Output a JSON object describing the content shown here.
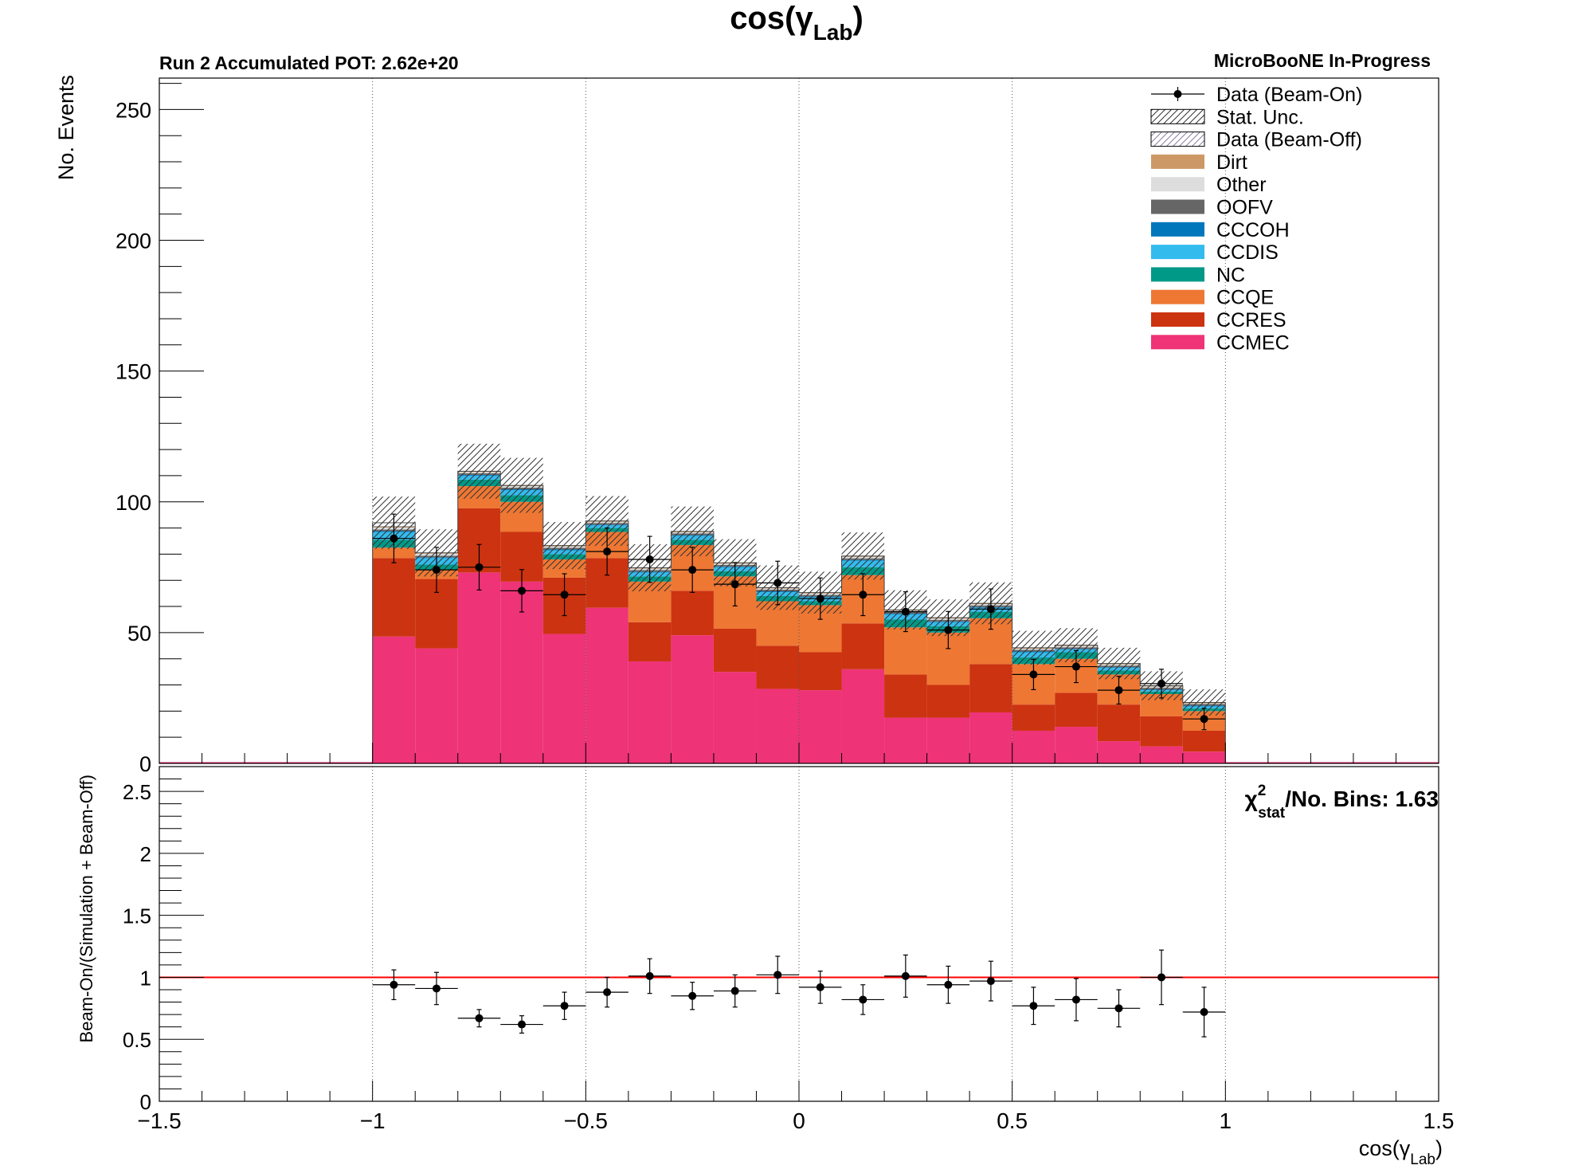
{
  "chart_data": {
    "type": "bar",
    "title": "cos(γ",
    "title_sub": "Lab",
    "title_close": ")",
    "subtitle_left": "Run 2 Accumulated POT: 2.62e+20",
    "subtitle_right": "MicroBooNE In-Progress",
    "xlabel": "cos(γ",
    "xlabel_sub": "Lab",
    "xlabel_close": ")",
    "ylabel": "No. Events",
    "ratio_ylabel": "Beam-On/(Simulation + Beam-Off)",
    "xlim": [
      -1.5,
      1.5
    ],
    "ylim": [
      0,
      262
    ],
    "ratio_ylim": [
      0,
      2.7
    ],
    "x_ticks": [
      "−1.5",
      "−1",
      "−0.5",
      "0",
      "0.5",
      "1",
      "1.5"
    ],
    "x_tick_values": [
      -1.5,
      -1,
      -0.5,
      0,
      0.5,
      1,
      1.5
    ],
    "y_ticks": [
      "0",
      "50",
      "100",
      "150",
      "200",
      "250"
    ],
    "y_tick_values": [
      0,
      50,
      100,
      150,
      200,
      250
    ],
    "ratio_ticks": [
      "0",
      "0.5",
      "1",
      "1.5",
      "2",
      "2.5"
    ],
    "ratio_tick_values": [
      0,
      0.5,
      1,
      1.5,
      2,
      2.5
    ],
    "bin_edges": [
      -1.0,
      -0.9,
      -0.8,
      -0.7,
      -0.6,
      -0.5,
      -0.4,
      -0.3,
      -0.2,
      -0.1,
      0.0,
      0.1,
      0.2,
      0.3,
      0.4,
      0.5,
      0.6,
      0.7,
      0.8,
      0.9,
      1.0
    ],
    "series": [
      {
        "name": "CCMEC",
        "color": "#ee3377",
        "values": [
          48.5,
          44,
          73,
          69.5,
          49.5,
          59.5,
          39,
          49,
          35,
          28.5,
          28,
          36,
          17.5,
          17.5,
          19.5,
          12.5,
          14,
          8.5,
          6.5,
          4.5
        ]
      },
      {
        "name": "CCRES",
        "color": "#cc3311",
        "values": [
          30,
          26.5,
          24.5,
          19,
          21.5,
          19,
          15,
          17,
          16.5,
          16.5,
          14.5,
          17.5,
          16.5,
          12.5,
          18.5,
          10,
          13,
          14,
          11.5,
          8
        ]
      },
      {
        "name": "CCQE",
        "color": "#ee7733",
        "values": [
          4,
          3.5,
          8.5,
          11.5,
          7,
          10,
          15.5,
          17.5,
          20,
          17,
          18,
          18.5,
          18,
          20,
          17.5,
          15.5,
          13,
          11.5,
          8.5,
          7.5
        ]
      },
      {
        "name": "NC",
        "color": "#009988",
        "values": [
          3,
          2,
          2.5,
          2.5,
          2,
          1.5,
          2,
          2,
          2,
          2,
          1.5,
          3,
          3,
          2.5,
          2.5,
          2.5,
          2.5,
          1.5,
          1,
          1
        ]
      },
      {
        "name": "CCDIS",
        "color": "#33bbee",
        "values": [
          3,
          2.5,
          1.5,
          2,
          1.5,
          1,
          1.5,
          1.5,
          1.5,
          1.5,
          1.5,
          2.5,
          2,
          1.5,
          1.5,
          2,
          1,
          1,
          0.5,
          0.8
        ]
      },
      {
        "name": "CCCOH",
        "color": "#0077bb",
        "values": [
          0.3,
          0.3,
          0.3,
          0.3,
          0.3,
          0.3,
          0.3,
          0.3,
          0.3,
          0.3,
          0.3,
          0.3,
          0.3,
          0.3,
          0.3,
          0.3,
          0.3,
          0.3,
          0.3,
          0.3
        ]
      },
      {
        "name": "OOFV",
        "color": "#666666",
        "values": [
          0.6,
          0.6,
          0.6,
          0.6,
          0.6,
          0.6,
          0.6,
          0.6,
          0.6,
          0.6,
          0.6,
          0.6,
          0.6,
          0.6,
          0.6,
          0.6,
          0.6,
          0.6,
          0.6,
          0.6
        ]
      },
      {
        "name": "Other",
        "color": "#dddddd",
        "values": [
          0.8,
          0.8,
          0.5,
          0.6,
          0.6,
          0.5,
          0.6,
          0.5,
          0.5,
          0.5,
          0.6,
          0.6,
          0.5,
          0.5,
          0.5,
          0.5,
          0.5,
          0.5,
          0.5,
          0.3
        ]
      },
      {
        "name": "Dirt",
        "color": "#cc9966",
        "values": [
          0.3,
          0.3,
          0.3,
          0.3,
          0.3,
          0.3,
          0.3,
          0.3,
          0.3,
          0.3,
          0.3,
          0.3,
          0.3,
          0.3,
          0.3,
          0.3,
          0.3,
          0.3,
          0.3,
          0.3
        ]
      },
      {
        "name": "Data (Beam-Off)",
        "color": "#ffffff",
        "values": [
          1.5,
          0,
          0,
          0,
          0,
          0,
          0,
          0,
          0,
          0,
          0,
          0,
          0,
          0,
          0,
          0,
          0,
          0,
          0,
          0
        ]
      }
    ],
    "stat_unc": [
      10,
      9,
      10.5,
      10.5,
      9,
      9.5,
      9,
      9.5,
      9,
      8.5,
      8,
      9,
      7.5,
      7,
      8,
      6.5,
      6.5,
      6,
      5.5,
      5
    ],
    "data": [
      86,
      74,
      75,
      66,
      64.5,
      81,
      78,
      74,
      68.5,
      69,
      63,
      64.5,
      58,
      51,
      59,
      34,
      37,
      28,
      30.5,
      17
    ],
    "data_err": [
      9.3,
      8.6,
      8.7,
      8.1,
      8.0,
      9.0,
      8.8,
      8.6,
      8.3,
      8.3,
      7.9,
      8.0,
      7.6,
      7.1,
      7.7,
      5.8,
      6.1,
      5.3,
      5.5,
      4.1
    ],
    "ratio": [
      0.94,
      0.91,
      0.67,
      0.62,
      0.77,
      0.88,
      1.01,
      0.85,
      0.89,
      1.02,
      0.92,
      0.82,
      1.01,
      0.94,
      0.97,
      0.77,
      0.82,
      0.75,
      1.0,
      0.72
    ],
    "ratio_err": [
      0.12,
      0.13,
      0.07,
      0.07,
      0.11,
      0.12,
      0.14,
      0.11,
      0.13,
      0.15,
      0.13,
      0.12,
      0.17,
      0.15,
      0.16,
      0.15,
      0.17,
      0.15,
      0.22,
      0.2
    ],
    "ratio_reference": 1,
    "ratio_reference_color": "#ff0000",
    "chi2_label": "χ",
    "chi2_sup": "2",
    "chi2_sub": "stat",
    "chi2_text": "/No. Bins: 1.63",
    "legend_position": "top-right",
    "legend": [
      {
        "label": "Data (Beam-On)",
        "style": "data"
      },
      {
        "label": "Stat. Unc.",
        "style": "hatch"
      },
      {
        "label": "Data (Beam-Off)",
        "style": "hatch-light"
      },
      {
        "label": "Dirt",
        "style": "fill",
        "color": "#cc9966"
      },
      {
        "label": "Other",
        "style": "fill",
        "color": "#dddddd"
      },
      {
        "label": "OOFV",
        "style": "fill",
        "color": "#666666"
      },
      {
        "label": "CCCOH",
        "style": "fill",
        "color": "#0077bb"
      },
      {
        "label": "CCDIS",
        "style": "fill",
        "color": "#33bbee"
      },
      {
        "label": "NC",
        "style": "fill",
        "color": "#009988"
      },
      {
        "label": "CCQE",
        "style": "fill",
        "color": "#ee7733"
      },
      {
        "label": "CCRES",
        "style": "fill",
        "color": "#cc3311"
      },
      {
        "label": "CCMEC",
        "style": "fill",
        "color": "#ee3377"
      }
    ]
  }
}
